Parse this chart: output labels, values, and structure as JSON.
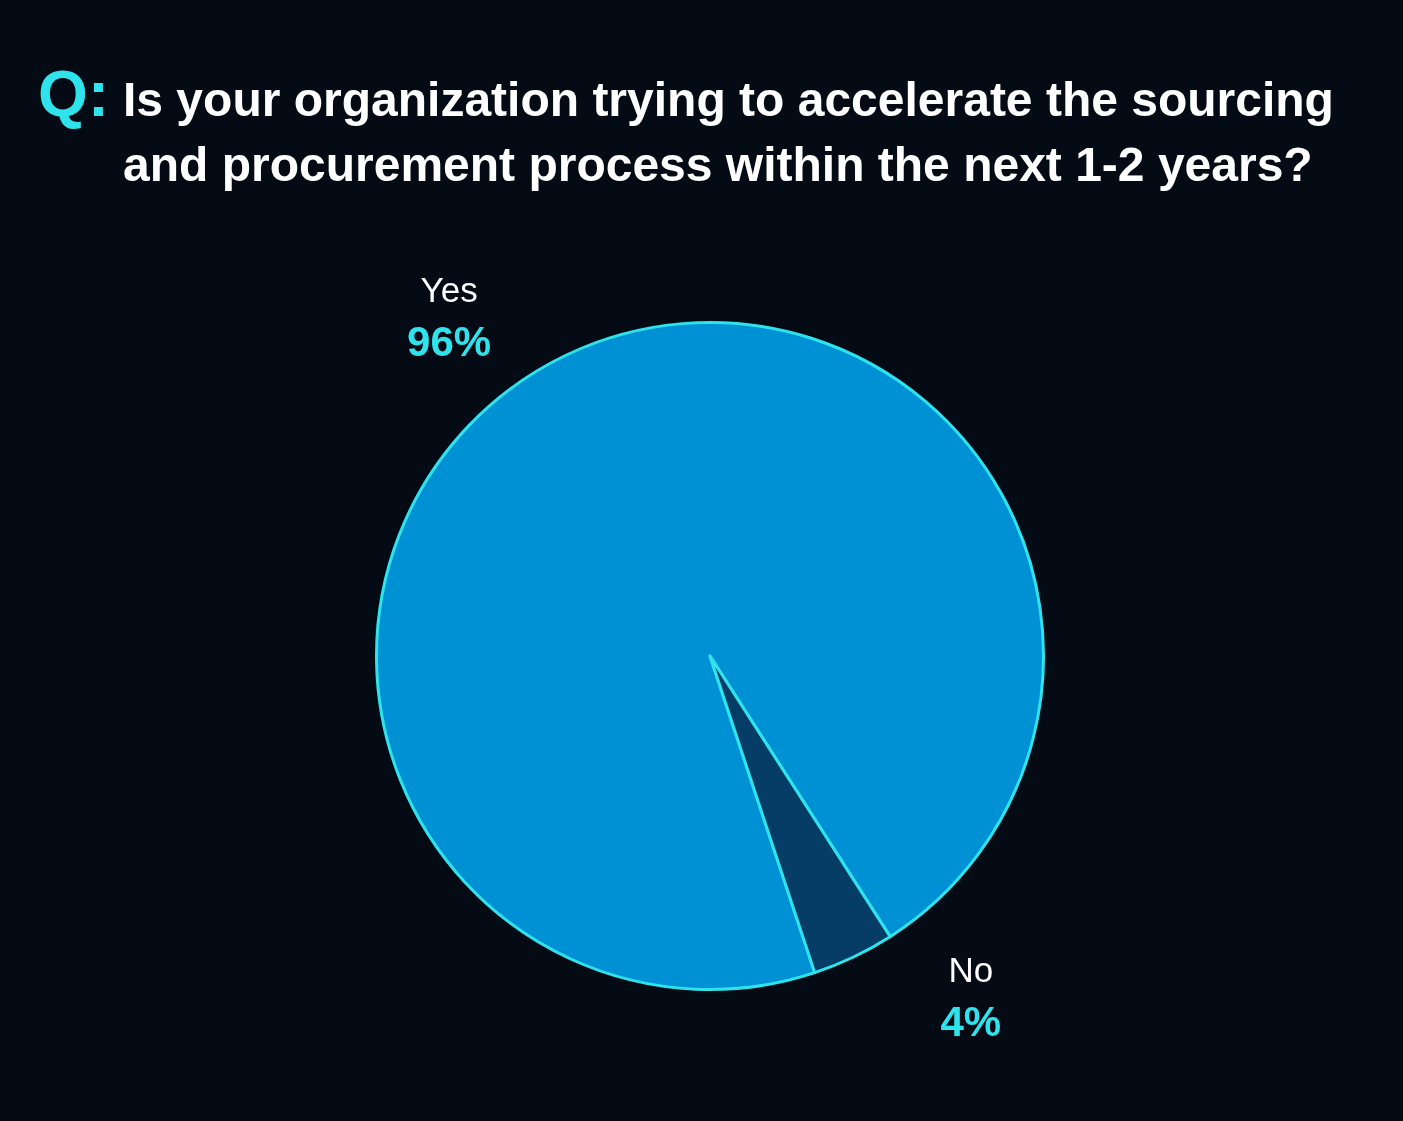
{
  "chart_data": {
    "type": "pie",
    "title": "Q: Is your organization trying to accelerate the sourcing and procurement process within the next 1-2 years?",
    "categories": [
      "Yes",
      "No"
    ],
    "values": [
      96,
      4
    ],
    "colors": [
      "#0090d4",
      "#063d66"
    ],
    "value_labels": [
      "96%",
      "4%"
    ]
  }
}
